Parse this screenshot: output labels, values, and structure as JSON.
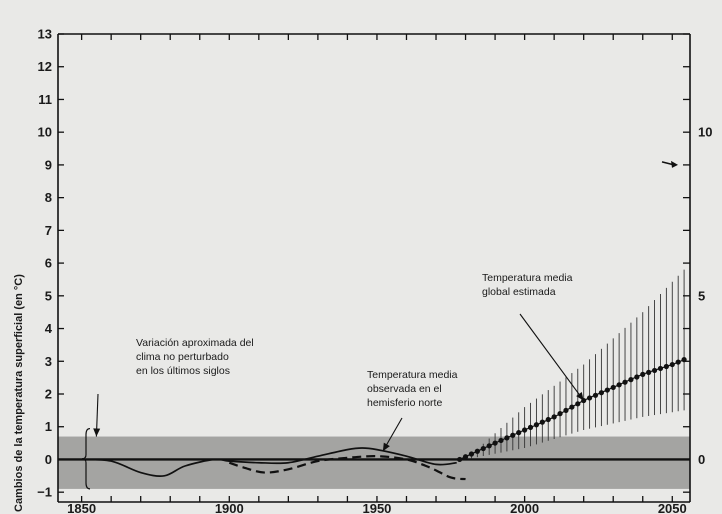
{
  "chart_data": {
    "type": "line",
    "ylabel": "Cambios de la temperatura superficial (en °C)",
    "xlabel": "",
    "xlim": [
      1842,
      2056
    ],
    "ylim": [
      -1.3,
      13
    ],
    "x_ticks": [
      1850,
      1900,
      1950,
      2000,
      2050
    ],
    "x_tick_labels": [
      "1850",
      "1900",
      "1950",
      "2000",
      "2050"
    ],
    "y_ticks_left": [
      -1,
      0,
      1,
      2,
      3,
      4,
      5,
      6,
      7,
      8,
      9,
      10,
      11,
      12,
      13
    ],
    "y_tick_labels_left": [
      "−1",
      "0",
      "1",
      "2",
      "3",
      "4",
      "5",
      "6",
      "7",
      "8",
      "9",
      "10",
      "11",
      "12",
      "13"
    ],
    "y_ticks_right": [
      {
        "y": 0,
        "label": "0"
      },
      {
        "y": 5,
        "label": "5"
      },
      {
        "y": 10,
        "label": "10"
      }
    ],
    "right_arrow_y": 9,
    "natural_variation_band": [
      -0.9,
      0.7
    ],
    "grid": false,
    "series": [
      {
        "style": "solid",
        "x": [
          1850,
          1860,
          1870,
          1878,
          1885,
          1895,
          1900,
          1910,
          1920,
          1930,
          1940,
          1945,
          1950,
          1960,
          1970,
          1977
        ],
        "y": [
          0,
          -0.05,
          -0.4,
          -0.5,
          -0.2,
          0,
          -0.05,
          -0.1,
          -0.1,
          0.1,
          0.3,
          0.35,
          0.3,
          0.1,
          -0.15,
          -0.1
        ]
      },
      {
        "style": "dashed",
        "x": [
          1900,
          1905,
          1912,
          1920,
          1930,
          1940,
          1950,
          1960,
          1968,
          1975,
          1980
        ],
        "y": [
          -0.1,
          -0.25,
          -0.4,
          -0.3,
          -0.05,
          0.05,
          0.1,
          0.0,
          -0.25,
          -0.55,
          -0.6
        ]
      },
      {
        "style": "dotted-markers",
        "x": [
          1978,
          1990,
          2000,
          2010,
          2020,
          2030,
          2040,
          2050,
          2054
        ],
        "y": [
          0,
          0.5,
          0.9,
          1.3,
          1.8,
          2.2,
          2.6,
          2.9,
          3.05
        ]
      }
    ],
    "uncertainty": {
      "x": [
        1980,
        2000,
        2020,
        2040,
        2054
      ],
      "lower": [
        0,
        0.35,
        0.9,
        1.3,
        1.5
      ],
      "upper": [
        0,
        1.6,
        2.9,
        4.5,
        5.8
      ]
    },
    "annotations": [
      {
        "lines": [
          "Variación aproximada del",
          "clima no perturbado",
          "en los últimos siglos"
        ],
        "target": [
          1855,
          0.7
        ]
      },
      {
        "lines": [
          "Temperatura media",
          "observada en el",
          "hemisferio norte"
        ],
        "target": [
          1952,
          0.25
        ]
      },
      {
        "lines": [
          "Temperatura media",
          "global estimada"
        ],
        "target": [
          2020,
          1.8
        ]
      }
    ]
  }
}
